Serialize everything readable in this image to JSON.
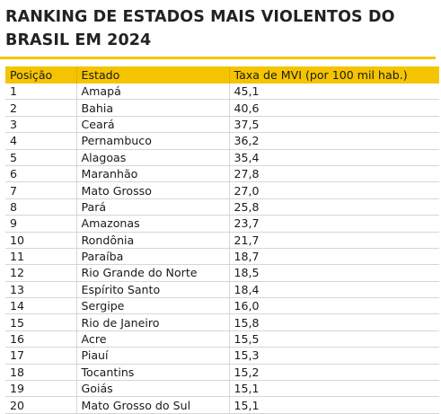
{
  "title": "RANKING DE ESTADOS MAIS VIOLENTOS DO BRASIL EM 2024",
  "accent_color": "#f5c400",
  "table": {
    "headers": [
      "Posição",
      "Estado",
      "Taxa de MVI (por 100 mil hab.)"
    ],
    "rows": [
      {
        "pos": "1",
        "estado": "Amapá",
        "taxa": "45,1"
      },
      {
        "pos": "2",
        "estado": "Bahia",
        "taxa": "40,6"
      },
      {
        "pos": "3",
        "estado": "Ceará",
        "taxa": "37,5"
      },
      {
        "pos": "4",
        "estado": "Pernambuco",
        "taxa": "36,2"
      },
      {
        "pos": "5",
        "estado": "Alagoas",
        "taxa": "35,4"
      },
      {
        "pos": "6",
        "estado": "Maranhão",
        "taxa": "27,8"
      },
      {
        "pos": "7",
        "estado": "Mato Grosso",
        "taxa": "27,0"
      },
      {
        "pos": "8",
        "estado": "Pará",
        "taxa": "25,8"
      },
      {
        "pos": "9",
        "estado": "Amazonas",
        "taxa": "23,7"
      },
      {
        "pos": "10",
        "estado": "Rondônia",
        "taxa": "21,7"
      },
      {
        "pos": "11",
        "estado": "Paraíba",
        "taxa": "18,7"
      },
      {
        "pos": "12",
        "estado": "Rio Grande do Norte",
        "taxa": "18,5"
      },
      {
        "pos": "13",
        "estado": "Espírito Santo",
        "taxa": "18,4"
      },
      {
        "pos": "14",
        "estado": "Sergipe",
        "taxa": "16,0"
      },
      {
        "pos": "15",
        "estado": "Rio de Janeiro",
        "taxa": "15,8"
      },
      {
        "pos": "16",
        "estado": "Acre",
        "taxa": "15,5"
      },
      {
        "pos": "17",
        "estado": "Piauí",
        "taxa": "15,3"
      },
      {
        "pos": "18",
        "estado": "Tocantins",
        "taxa": "15,2"
      },
      {
        "pos": "19",
        "estado": "Goiás",
        "taxa": "15,1"
      },
      {
        "pos": "20",
        "estado": "Mato Grosso do Sul",
        "taxa": "15,1"
      }
    ]
  }
}
